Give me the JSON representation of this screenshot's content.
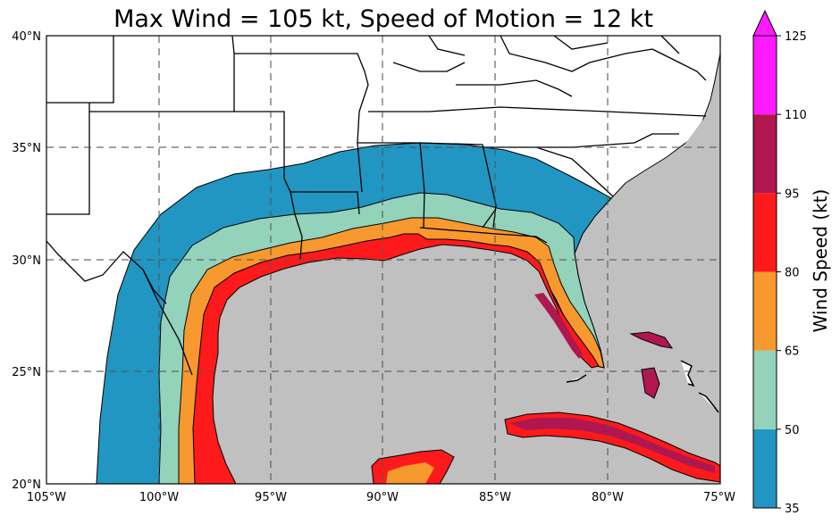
{
  "title": "Max Wind = 105 kt, Speed of Motion = 12 kt",
  "map": {
    "lon_range": [
      -105,
      -75
    ],
    "lat_range": [
      20,
      40
    ],
    "lon_ticks": [
      "105°W",
      "100°W",
      "95°W",
      "90°W",
      "85°W",
      "80°W",
      "75°W"
    ],
    "lat_ticks": [
      "20°N",
      "25°N",
      "30°N",
      "35°N",
      "40°N"
    ],
    "gridlines": "dashed gray every 5°",
    "ocean_color": "#c0c0c0",
    "land_color": "#ffffff"
  },
  "colorbar": {
    "label": "Wind Speed (kt)",
    "ticks": [
      "35",
      "50",
      "65",
      "80",
      "95",
      "110",
      "125"
    ],
    "bins": [
      {
        "from": 35,
        "to": 50,
        "color": "#2196c2"
      },
      {
        "from": 50,
        "to": 65,
        "color": "#93d2bb"
      },
      {
        "from": 65,
        "to": 80,
        "color": "#f7992f"
      },
      {
        "from": 80,
        "to": 95,
        "color": "#fe1a1a"
      },
      {
        "from": 95,
        "to": 110,
        "color": "#b0164f"
      },
      {
        "from": 110,
        "to": 125,
        "color": "#fe1aff"
      }
    ],
    "extend": "max"
  }
}
